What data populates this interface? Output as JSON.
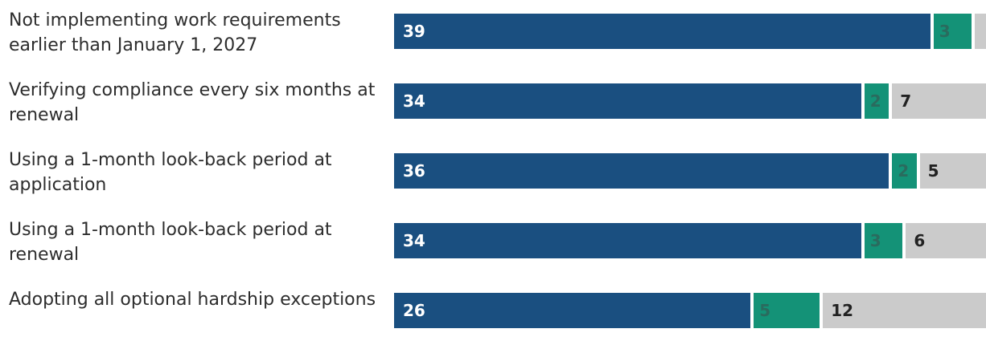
{
  "colors": {
    "series_a": "#1a4f80",
    "series_b": "#149277",
    "series_c": "#cbcbcb"
  },
  "chart_data": {
    "type": "bar",
    "orientation": "horizontal",
    "stacked": true,
    "categories": [
      "Not implementing work requirements earlier than January 1, 2027",
      "Verifying compliance every six months at renewal",
      "Using a 1-month look-back period at application",
      "Using a 1-month look-back period at renewal",
      "Adopting all optional hardship exceptions"
    ],
    "series": [
      {
        "values": [
          39,
          34,
          36,
          34,
          26
        ]
      },
      {
        "values": [
          3,
          2,
          2,
          3,
          5
        ]
      },
      {
        "values": [
          null,
          7,
          5,
          6,
          12
        ]
      }
    ],
    "xlim": [
      0,
      50
    ],
    "grid": false,
    "legend": "none"
  }
}
